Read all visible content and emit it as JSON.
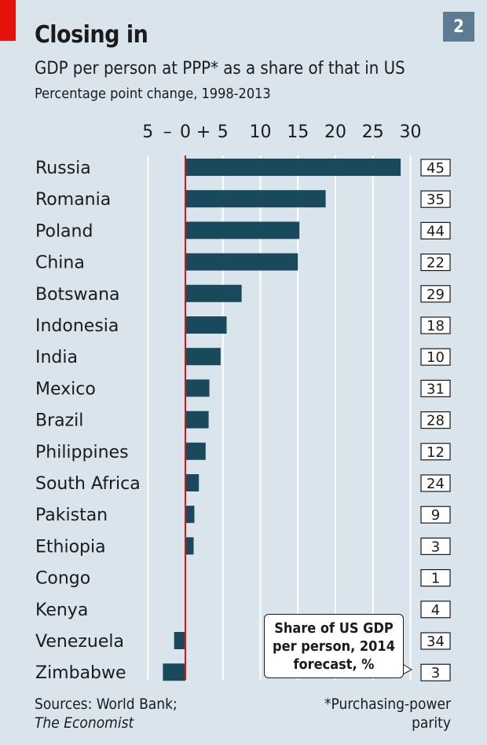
{
  "header": {
    "title": "Closing in",
    "subtitle": "GDP per person at PPP* as a share of that in US",
    "note": "Percentage point change, 1998-2013",
    "chart_number": "2"
  },
  "callout": "Share of US GDP per person, 2014 forecast, %",
  "footer": {
    "sources_plain": "Sources: World Bank;",
    "sources_italic": "The Economist",
    "footnote": "*Purchasing-power parity"
  },
  "colors": {
    "background": "#d9e4ec",
    "bar": "#184a5c",
    "zero_line": "#e3120b",
    "accent_red": "#e3120b",
    "chart_number_box": "#5e7c91"
  },
  "chart_data": {
    "type": "bar",
    "orientation": "horizontal",
    "title": "Closing in",
    "subtitle": "GDP per person at PPP* as a share of that in US",
    "xlabel": "Percentage point change, 1998-2013",
    "xlim": [
      -5,
      30
    ],
    "x_ticks": [
      -5,
      0,
      5,
      10,
      15,
      20,
      25,
      30
    ],
    "x_tick_labels": [
      "5",
      "0",
      "5",
      "10",
      "15",
      "20",
      "25",
      "30"
    ],
    "x_sign_labels": {
      "minus": "–",
      "plus": "+"
    },
    "grid": true,
    "categories": [
      "Russia",
      "Romania",
      "Poland",
      "China",
      "Botswana",
      "Indonesia",
      "India",
      "Mexico",
      "Brazil",
      "Philippines",
      "South Africa",
      "Pakistan",
      "Ethiopia",
      "Congo",
      "Kenya",
      "Venezuela",
      "Zimbabwe"
    ],
    "values": [
      28.7,
      18.7,
      15.2,
      15.0,
      7.5,
      5.5,
      4.7,
      3.2,
      3.1,
      2.7,
      1.8,
      1.2,
      1.1,
      0,
      0,
      -1.5,
      -3.0
    ],
    "side_labels": [
      "45",
      "35",
      "44",
      "22",
      "29",
      "18",
      "10",
      "31",
      "28",
      "12",
      "24",
      "9",
      "3",
      "1",
      "4",
      "34",
      "3"
    ]
  }
}
